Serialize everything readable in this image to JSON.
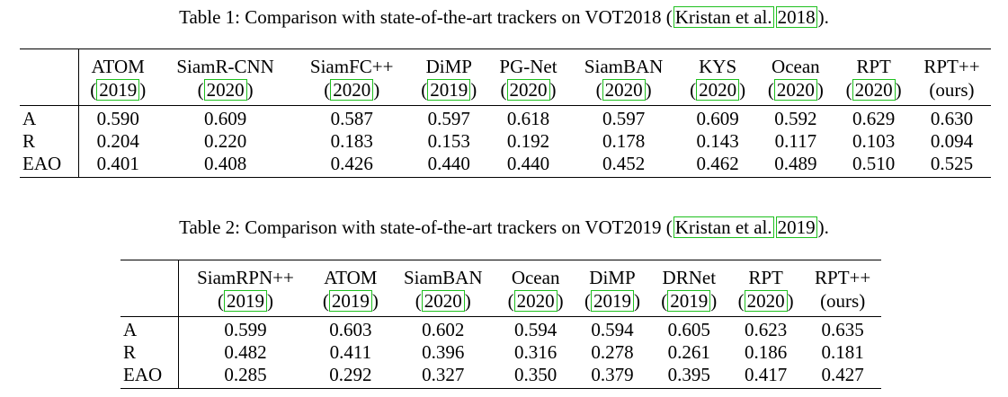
{
  "table1": {
    "caption_prefix": "Table 1: Comparison with state-of-the-art trackers on VOT2018 (",
    "caption_cite_author": "Kristan et al.",
    "caption_cite_year": "2018",
    "caption_suffix": ").",
    "columns": [
      {
        "name": "ATOM",
        "year": "2019",
        "cited": true
      },
      {
        "name": "SiamR-CNN",
        "year": "2020",
        "cited": true
      },
      {
        "name": "SiamFC++",
        "year": "2020",
        "cited": true
      },
      {
        "name": "DiMP",
        "year": "2019",
        "cited": true
      },
      {
        "name": "PG-Net",
        "year": "2020",
        "cited": true
      },
      {
        "name": "SiamBAN",
        "year": "2020",
        "cited": true
      },
      {
        "name": "KYS",
        "year": "2020",
        "cited": true
      },
      {
        "name": "Ocean",
        "year": "2020",
        "cited": true
      },
      {
        "name": "RPT",
        "year": "2020",
        "cited": true
      },
      {
        "name": "RPT++",
        "year": "(ours)",
        "cited": false
      }
    ],
    "rows": [
      {
        "label": "A",
        "values": [
          "0.590",
          "0.609",
          "0.587",
          "0.597",
          "0.618",
          "0.597",
          "0.609",
          "0.592",
          "0.629",
          "0.630"
        ]
      },
      {
        "label": "R",
        "values": [
          "0.204",
          "0.220",
          "0.183",
          "0.153",
          "0.192",
          "0.178",
          "0.143",
          "0.117",
          "0.103",
          "0.094"
        ]
      },
      {
        "label": "EAO",
        "values": [
          "0.401",
          "0.408",
          "0.426",
          "0.440",
          "0.440",
          "0.452",
          "0.462",
          "0.489",
          "0.510",
          "0.525"
        ]
      }
    ]
  },
  "table2": {
    "caption_prefix": "Table 2: Comparison with state-of-the-art trackers on VOT2019 (",
    "caption_cite_author": "Kristan et al.",
    "caption_cite_year": "2019",
    "caption_suffix": ").",
    "columns": [
      {
        "name": "SiamRPN++",
        "year": "2019",
        "cited": true
      },
      {
        "name": "ATOM",
        "year": "2019",
        "cited": true
      },
      {
        "name": "SiamBAN",
        "year": "2020",
        "cited": true
      },
      {
        "name": "Ocean",
        "year": "2020",
        "cited": true
      },
      {
        "name": "DiMP",
        "year": "2019",
        "cited": true
      },
      {
        "name": "DRNet",
        "year": "2019",
        "cited": true
      },
      {
        "name": "RPT",
        "year": "2020",
        "cited": true
      },
      {
        "name": "RPT++",
        "year": "(ours)",
        "cited": false
      }
    ],
    "rows": [
      {
        "label": "A",
        "values": [
          "0.599",
          "0.603",
          "0.602",
          "0.594",
          "0.594",
          "0.605",
          "0.623",
          "0.635"
        ]
      },
      {
        "label": "R",
        "values": [
          "0.482",
          "0.411",
          "0.396",
          "0.316",
          "0.278",
          "0.261",
          "0.186",
          "0.181"
        ]
      },
      {
        "label": "EAO",
        "values": [
          "0.285",
          "0.292",
          "0.327",
          "0.350",
          "0.379",
          "0.395",
          "0.417",
          "0.427"
        ]
      }
    ]
  },
  "colors": {
    "citation_box": "#1fc01f",
    "text": "#000000"
  }
}
